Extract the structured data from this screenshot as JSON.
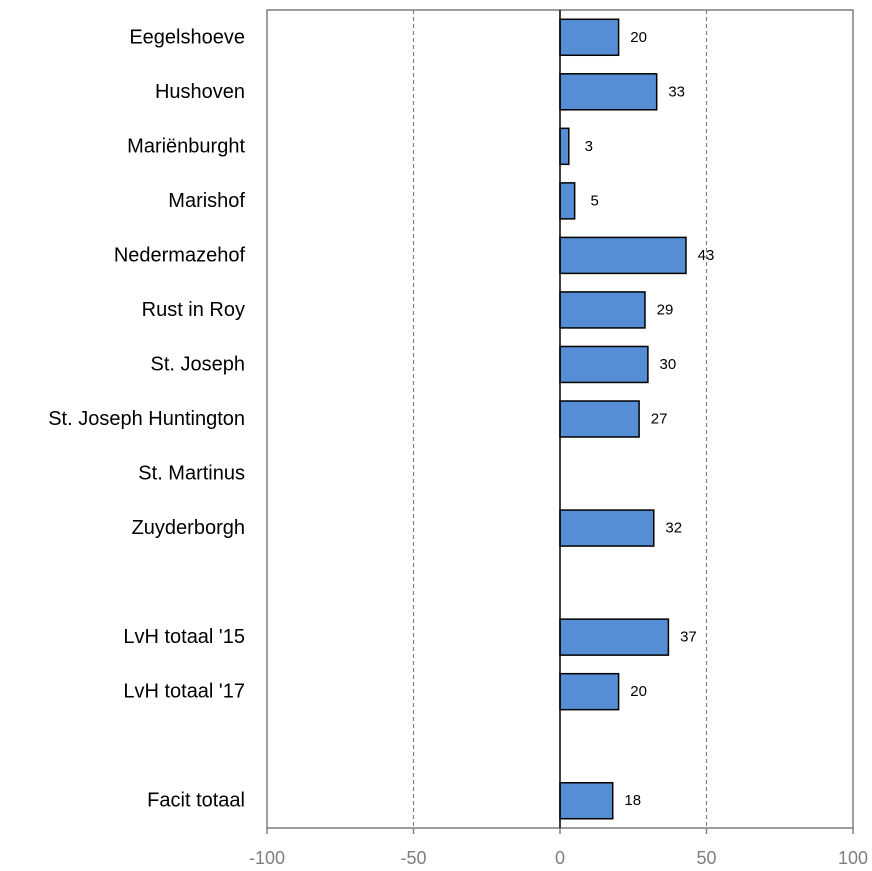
{
  "chart_data": {
    "type": "bar",
    "orientation": "horizontal",
    "title": "",
    "xlabel": "",
    "ylabel": "",
    "xlim": [
      -100,
      100
    ],
    "xticks": [
      -100,
      -50,
      0,
      50,
      100
    ],
    "tick_labels": [
      "-100",
      "-50",
      "0",
      "50",
      "100"
    ],
    "grid": "vertical dashed",
    "bar_color": "#558ED5",
    "categories": [
      "Eegelshoeve",
      "Hushoven",
      "Mariënburght",
      "Marishof",
      "Nedermazehof",
      "Rust in Roy",
      "St. Joseph",
      "St. Joseph Huntington",
      "St. Martinus",
      "Zuyderborgh",
      "",
      "LvH totaal '15",
      "LvH totaal '17",
      "",
      "Facit totaal"
    ],
    "values": [
      20,
      33,
      3,
      5,
      43,
      29,
      30,
      27,
      null,
      32,
      null,
      37,
      20,
      null,
      18
    ],
    "value_labels": [
      "20",
      "33",
      "3",
      "5",
      "43",
      "29",
      "30",
      "27",
      "",
      "32",
      "",
      "37",
      "20",
      "",
      "18"
    ]
  }
}
